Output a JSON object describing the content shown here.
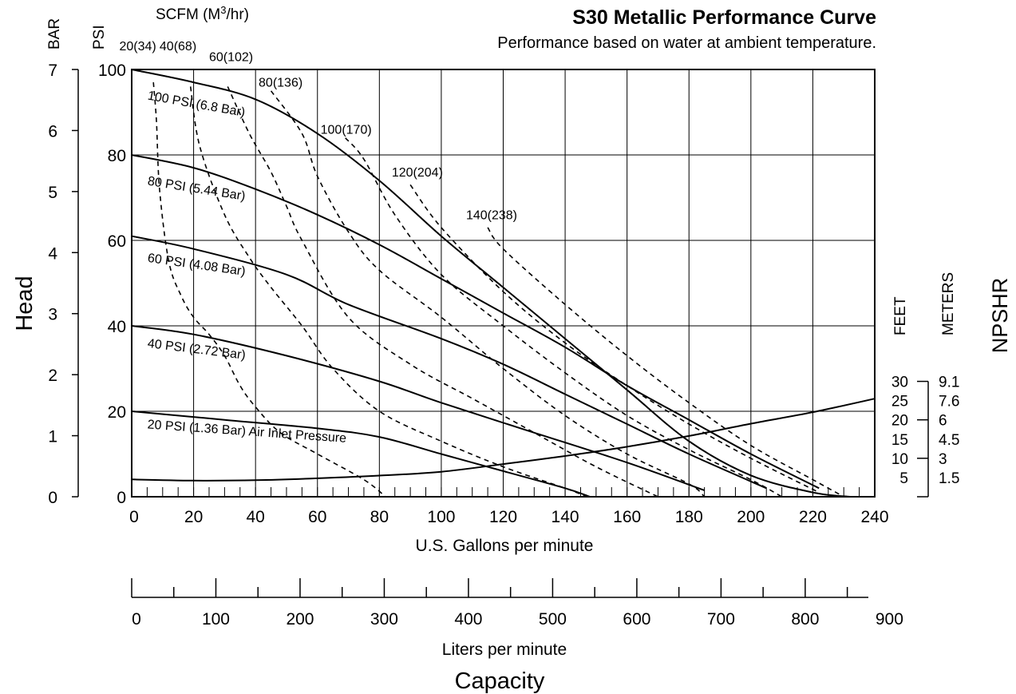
{
  "chart_data": {
    "type": "line",
    "title": "S30 Metallic Performance Curve",
    "subtitle": "Performance based on water at ambient temperature.",
    "xlabel": "U.S. Gallons per minute",
    "x2label": "Liters per minute",
    "capacity_label": "Capacity",
    "head_label": "Head",
    "psi_unit": "PSI",
    "bar_unit": "BAR",
    "scfm_label": "SCFM (M",
    "scfm_sup": "3",
    "scfm_tail": "/hr)",
    "npshr_label": "NPSHR",
    "feet_label": "FEET",
    "meters_label": "METERS",
    "xlim": [
      0,
      240
    ],
    "ylim": [
      0,
      100
    ],
    "x_ticks": [
      "0",
      "20",
      "40",
      "60",
      "80",
      "100",
      "120",
      "140",
      "160",
      "180",
      "200",
      "220",
      "240"
    ],
    "psi_ticks": [
      "0",
      "20",
      "40",
      "60",
      "80",
      "100"
    ],
    "bar_ticks": [
      "0",
      "1",
      "2",
      "3",
      "4",
      "5",
      "6",
      "7"
    ],
    "lpm_ticks": [
      "0",
      "100",
      "200",
      "300",
      "400",
      "500",
      "600",
      "700",
      "800",
      "900"
    ],
    "npsh_feet_ticks": [
      "5",
      "10",
      "15",
      "20",
      "25",
      "30"
    ],
    "npsh_meter_ticks": [
      "1.5",
      "3",
      "4.5",
      "6",
      "7.6",
      "9.1"
    ],
    "pressure_curves": [
      {
        "name": "100 PSI (6.8 Bar)",
        "points": [
          [
            0,
            100
          ],
          [
            20,
            97
          ],
          [
            40,
            93
          ],
          [
            60,
            85
          ],
          [
            80,
            74
          ],
          [
            100,
            61
          ],
          [
            120,
            49
          ],
          [
            140,
            37
          ],
          [
            160,
            25
          ],
          [
            180,
            13
          ],
          [
            200,
            5
          ],
          [
            220,
            1
          ],
          [
            232,
            0
          ]
        ]
      },
      {
        "name": "80 PSI (5.44 Bar)",
        "points": [
          [
            0,
            80
          ],
          [
            20,
            77
          ],
          [
            40,
            72
          ],
          [
            60,
            66
          ],
          [
            80,
            59
          ],
          [
            100,
            51
          ],
          [
            120,
            43
          ],
          [
            140,
            35
          ],
          [
            160,
            26
          ],
          [
            180,
            18
          ],
          [
            200,
            10
          ],
          [
            222,
            2
          ]
        ]
      },
      {
        "name": "60 PSI (4.08 Bar)",
        "points": [
          [
            0,
            61
          ],
          [
            20,
            58
          ],
          [
            50,
            52
          ],
          [
            70,
            45
          ],
          [
            100,
            37
          ],
          [
            120,
            31
          ],
          [
            140,
            24
          ],
          [
            160,
            17
          ],
          [
            180,
            10
          ],
          [
            205,
            2
          ]
        ]
      },
      {
        "name": "40 PSI (2.72 Bar)",
        "points": [
          [
            0,
            40
          ],
          [
            20,
            38
          ],
          [
            50,
            33
          ],
          [
            80,
            27
          ],
          [
            100,
            22
          ],
          [
            130,
            15
          ],
          [
            160,
            8
          ],
          [
            185,
            1.5
          ]
        ]
      },
      {
        "name": "20 PSI (1.36 Bar) Air Inlet Pressure",
        "points": [
          [
            0,
            20
          ],
          [
            30,
            18
          ],
          [
            60,
            16
          ],
          [
            80,
            14
          ],
          [
            100,
            10
          ],
          [
            120,
            6
          ],
          [
            140,
            2
          ],
          [
            148,
            0
          ]
        ]
      }
    ],
    "air_curves": [
      {
        "name": "20(34)",
        "points": [
          [
            7,
            97
          ],
          [
            8,
            88
          ],
          [
            9,
            72
          ],
          [
            12,
            55
          ],
          [
            16,
            47
          ],
          [
            20,
            42
          ],
          [
            25,
            38
          ],
          [
            30,
            33
          ],
          [
            35,
            26
          ],
          [
            40,
            21
          ],
          [
            48,
            15
          ],
          [
            60,
            10
          ],
          [
            75,
            4
          ],
          [
            82,
            0
          ]
        ]
      },
      {
        "name": "40(68)",
        "points": [
          [
            19,
            96
          ],
          [
            22,
            82
          ],
          [
            30,
            66
          ],
          [
            38,
            56
          ],
          [
            45,
            49
          ],
          [
            55,
            40
          ],
          [
            65,
            30
          ],
          [
            80,
            20
          ],
          [
            100,
            13
          ],
          [
            120,
            7
          ],
          [
            140,
            2
          ],
          [
            147,
            0
          ]
        ]
      },
      {
        "name": "60(102)",
        "points": [
          [
            31,
            96
          ],
          [
            38,
            85
          ],
          [
            45,
            76
          ],
          [
            50,
            68
          ],
          [
            55,
            60
          ],
          [
            70,
            42
          ],
          [
            90,
            31
          ],
          [
            110,
            23
          ],
          [
            130,
            15
          ],
          [
            150,
            7
          ],
          [
            170,
            0
          ]
        ]
      },
      {
        "name": "80(136)",
        "points": [
          [
            45,
            95
          ],
          [
            55,
            85
          ],
          [
            60,
            75
          ],
          [
            70,
            62
          ],
          [
            80,
            53
          ],
          [
            100,
            42
          ],
          [
            120,
            30
          ],
          [
            140,
            19
          ],
          [
            160,
            10
          ],
          [
            180,
            3
          ],
          [
            185,
            0
          ]
        ]
      },
      {
        "name": "100(170)",
        "points": [
          [
            69,
            84
          ],
          [
            75,
            79
          ],
          [
            85,
            66
          ],
          [
            100,
            52
          ],
          [
            120,
            40
          ],
          [
            140,
            29
          ],
          [
            160,
            19
          ],
          [
            180,
            11
          ],
          [
            200,
            4
          ],
          [
            210,
            0
          ]
        ]
      },
      {
        "name": "120(204)",
        "points": [
          [
            90,
            73
          ],
          [
            100,
            63
          ],
          [
            120,
            48
          ],
          [
            140,
            36
          ],
          [
            160,
            26
          ],
          [
            180,
            17
          ],
          [
            200,
            9
          ],
          [
            222,
            1
          ]
        ]
      },
      {
        "name": "140(238)",
        "points": [
          [
            115,
            63
          ],
          [
            120,
            58
          ],
          [
            140,
            45
          ],
          [
            160,
            33
          ],
          [
            180,
            22
          ],
          [
            200,
            12
          ],
          [
            220,
            4
          ],
          [
            230,
            0
          ]
        ]
      }
    ],
    "npshr_curve": {
      "points": [
        [
          0,
          4.5
        ],
        [
          20,
          4.2
        ],
        [
          40,
          4.3
        ],
        [
          60,
          4.8
        ],
        [
          80,
          5.5
        ],
        [
          100,
          6.5
        ],
        [
          120,
          8.5
        ],
        [
          140,
          10.6
        ],
        [
          160,
          13
        ],
        [
          180,
          15.8
        ],
        [
          200,
          19
        ],
        [
          220,
          22
        ],
        [
          240,
          25.5
        ]
      ]
    }
  }
}
